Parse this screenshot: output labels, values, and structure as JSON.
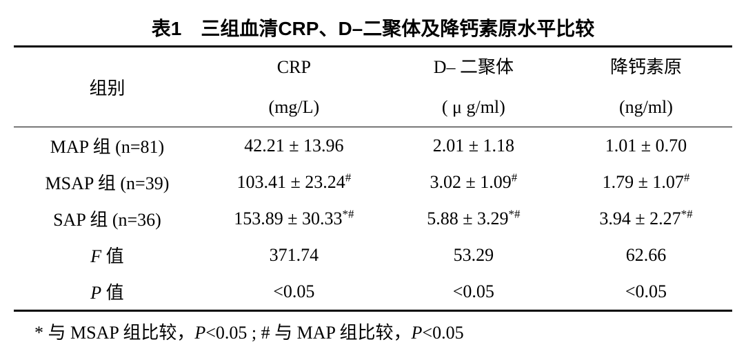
{
  "table": {
    "title": "表1　三组血清CRP、D–二聚体及降钙素原水平比较",
    "header": {
      "group_label": "组别",
      "cols": [
        {
          "name": "CRP",
          "unit": "(mg/L)"
        },
        {
          "name": "D– 二聚体",
          "unit": "( μ g/ml)"
        },
        {
          "name": "降钙素原",
          "unit": "(ng/ml)"
        }
      ]
    },
    "rows": [
      {
        "label": "MAP 组 (n=81)",
        "cells": [
          {
            "val": "42.21 ± 13.96",
            "sup": ""
          },
          {
            "val": "2.01 ± 1.18",
            "sup": ""
          },
          {
            "val": "1.01 ± 0.70",
            "sup": ""
          }
        ]
      },
      {
        "label": "MSAP 组 (n=39)",
        "cells": [
          {
            "val": "103.41 ± 23.24",
            "sup": "#"
          },
          {
            "val": "3.02 ± 1.09",
            "sup": "#"
          },
          {
            "val": "1.79 ± 1.07",
            "sup": "#"
          }
        ]
      },
      {
        "label": "SAP 组 (n=36)",
        "cells": [
          {
            "val": "153.89 ± 30.33",
            "sup": "*#"
          },
          {
            "val": "5.88 ± 3.29",
            "sup": "*#"
          },
          {
            "val": "3.94 ± 2.27",
            "sup": "*#"
          }
        ]
      },
      {
        "label_italic_prefix": "F",
        "label_rest": " 值",
        "cells": [
          {
            "val": "371.74",
            "sup": ""
          },
          {
            "val": "53.29",
            "sup": ""
          },
          {
            "val": "62.66",
            "sup": ""
          }
        ]
      },
      {
        "label_italic_prefix": "P",
        "label_rest": " 值",
        "cells": [
          {
            "val": "<0.05",
            "sup": ""
          },
          {
            "val": "<0.05",
            "sup": ""
          },
          {
            "val": "<0.05",
            "sup": ""
          }
        ]
      }
    ],
    "footnote_prefix": "* 与 MSAP 组比较，",
    "footnote_p1_italic": "P",
    "footnote_mid": "<0.05 ; # 与 MAP 组比较，",
    "footnote_p2_italic": "P",
    "footnote_end": "<0.05"
  },
  "style": {
    "colwidths_pct": [
      26,
      26,
      24,
      24
    ]
  }
}
